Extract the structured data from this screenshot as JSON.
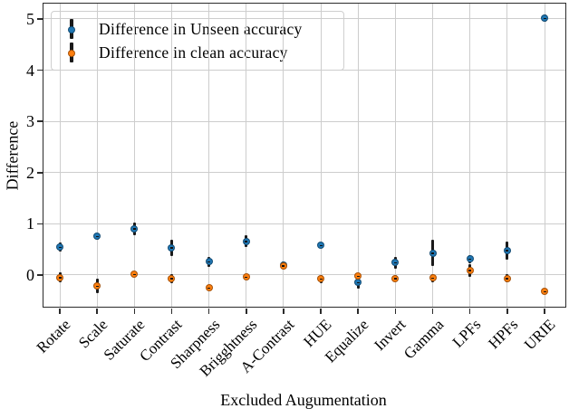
{
  "chart_data": {
    "type": "scatter",
    "title": "",
    "xlabel": "Excluded Augumentation",
    "ylabel": "Difference",
    "categories": [
      "Rotate",
      "Scale",
      "Saturate",
      "Contrast",
      "Sharpness",
      "Brigghtness",
      "A-Contrast",
      "HUE",
      "Equalize",
      "Invert",
      "Gamma",
      "LPFs",
      "HPFs",
      "URIE"
    ],
    "series": [
      {
        "name": "Difference in Unseen accuracy",
        "color": "#1f77b4",
        "values": [
          0.54,
          0.75,
          0.9,
          0.53,
          0.26,
          0.66,
          0.2,
          0.58,
          -0.15,
          0.24,
          0.43,
          0.31,
          0.48,
          5.01
        ],
        "errors": [
          0.09,
          0.06,
          0.12,
          0.16,
          0.1,
          0.12,
          0.06,
          0.05,
          0.11,
          0.12,
          0.25,
          0.08,
          0.18,
          0.07
        ]
      },
      {
        "name": "Difference in clean accuracy",
        "color": "#ff7f0e",
        "values": [
          -0.05,
          -0.22,
          0.01,
          -0.07,
          -0.25,
          -0.04,
          0.18,
          -0.08,
          -0.02,
          -0.07,
          -0.06,
          0.09,
          -0.07,
          -0.32
        ],
        "errors": [
          0.1,
          0.14,
          0.04,
          0.09,
          0.05,
          0.05,
          0.05,
          0.08,
          0.05,
          0.06,
          0.08,
          0.12,
          0.08,
          0.04
        ]
      }
    ],
    "ylim": [
      -0.62,
      5.3
    ],
    "yticks": [
      0,
      1,
      2,
      3,
      4,
      5
    ],
    "grid": true,
    "legend_position": "upper left",
    "marker": "point-with-errorbar",
    "errorbar_color": "#1a1a1a"
  }
}
